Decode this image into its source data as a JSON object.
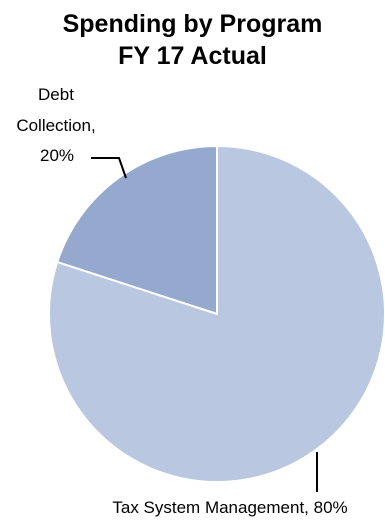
{
  "chart_data": {
    "type": "pie",
    "title_lines": [
      "Spending by Program",
      "FY 17 Actual"
    ],
    "slices": [
      {
        "label_lines": [
          "Debt",
          "Collection,",
          "20%"
        ],
        "category": "Debt Collection",
        "value": 20,
        "color": "#95a9cf"
      },
      {
        "label_lines": [
          "Tax System Management, 80%"
        ],
        "category": "Tax System Management",
        "value": 80,
        "color": "#b9c7e1"
      }
    ],
    "slice_border_color": "#ffffff",
    "leader_line_color": "#000000",
    "legend": "none"
  }
}
